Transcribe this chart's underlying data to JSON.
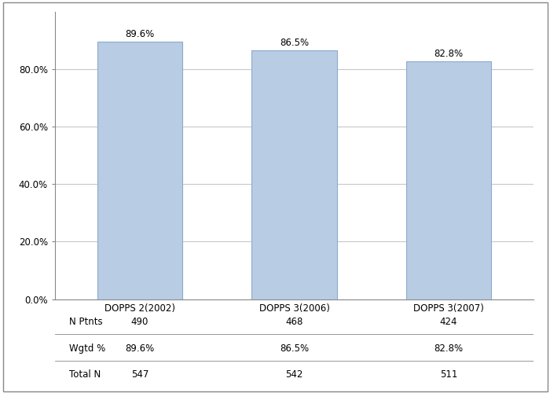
{
  "categories": [
    "DOPPS 2(2002)",
    "DOPPS 3(2006)",
    "DOPPS 3(2007)"
  ],
  "values": [
    89.6,
    86.5,
    82.8
  ],
  "bar_color": "#b8cce4",
  "bar_edgecolor": "#8eaacc",
  "bar_width": 0.55,
  "ylim": [
    0,
    100
  ],
  "yticks": [
    0,
    20,
    40,
    60,
    80
  ],
  "ytick_labels": [
    "0.0%",
    "20.0%",
    "40.0%",
    "60.0%",
    "80.0%"
  ],
  "value_labels": [
    "89.6%",
    "86.5%",
    "82.8%"
  ],
  "table_row_labels": [
    "N Ptnts",
    "Wgtd %",
    "Total N"
  ],
  "table_data": [
    [
      "490",
      "468",
      "424"
    ],
    [
      "89.6%",
      "86.5%",
      "82.8%"
    ],
    [
      "547",
      "542",
      "511"
    ]
  ],
  "background_color": "#ffffff",
  "grid_color": "#c8c8c8",
  "font_size_ticks": 8.5,
  "font_size_labels": 8.5,
  "font_size_bar_labels": 8.5,
  "font_size_table": 8.5,
  "border_color": "#888888"
}
